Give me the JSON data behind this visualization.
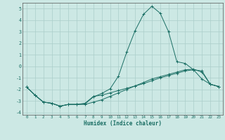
{
  "xlabel": "Humidex (Indice chaleur)",
  "background_color": "#cce8e4",
  "grid_color": "#aaceca",
  "line_color": "#1a6e64",
  "x_values": [
    0,
    1,
    2,
    3,
    4,
    5,
    6,
    7,
    8,
    9,
    10,
    11,
    12,
    13,
    14,
    15,
    16,
    17,
    18,
    19,
    20,
    21,
    22,
    23
  ],
  "series1": [
    -1.8,
    -2.5,
    -3.1,
    -3.2,
    -3.45,
    -3.3,
    -3.3,
    -3.2,
    -2.6,
    -2.5,
    -2.3,
    -2.1,
    -1.9,
    -1.7,
    -1.5,
    -1.25,
    -1.0,
    -0.8,
    -0.6,
    -0.4,
    -0.3,
    -0.4,
    -1.55,
    -1.75
  ],
  "series2": [
    -1.8,
    -2.5,
    -3.1,
    -3.2,
    -3.45,
    -3.3,
    -3.3,
    -3.25,
    -2.65,
    -2.35,
    -1.95,
    -0.85,
    1.25,
    3.1,
    4.5,
    5.2,
    4.6,
    3.0,
    0.4,
    0.25,
    -0.3,
    -1.1,
    -1.55,
    -1.75
  ],
  "series3": [
    -1.8,
    -2.5,
    -3.1,
    -3.2,
    -3.45,
    -3.3,
    -3.3,
    -3.3,
    -3.1,
    -2.9,
    -2.6,
    -2.3,
    -2.0,
    -1.7,
    -1.4,
    -1.1,
    -0.9,
    -0.7,
    -0.5,
    -0.3,
    -0.25,
    -0.5,
    -1.55,
    -1.75
  ],
  "ylim": [
    -4.2,
    5.5
  ],
  "xlim": [
    -0.5,
    23.5
  ],
  "yticks": [
    -4,
    -3,
    -2,
    -1,
    0,
    1,
    2,
    3,
    4,
    5
  ],
  "xticks": [
    0,
    1,
    2,
    3,
    4,
    5,
    6,
    7,
    8,
    9,
    10,
    11,
    12,
    13,
    14,
    15,
    16,
    17,
    18,
    19,
    20,
    21,
    22,
    23
  ]
}
